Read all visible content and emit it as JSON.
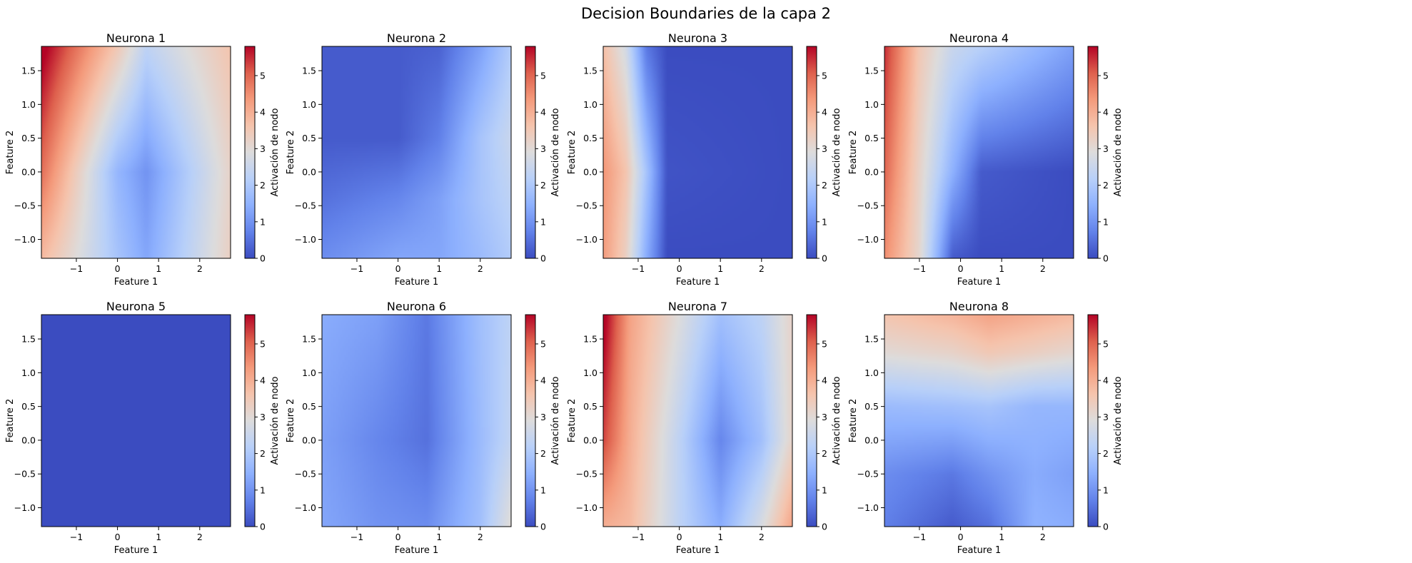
{
  "chart_data": {
    "type": "heatmap",
    "title": "Decision Boundaries de la capa 2",
    "colormap": "coolwarm",
    "colorbar": {
      "label": "Activación de nodo",
      "range": [
        0,
        5.8
      ],
      "ticks": [
        "0",
        "1",
        "2",
        "3",
        "4",
        "5"
      ]
    },
    "xlabel": "Feature 1",
    "ylabel": "Feature 2",
    "xlim": [
      -1.85,
      2.75
    ],
    "ylim": [
      -1.28,
      1.86
    ],
    "xticks": [
      "−1",
      "0",
      "1",
      "2"
    ],
    "yticks": [
      "−1.0",
      "−0.5",
      "0.0",
      "0.5",
      "1.0",
      "1.5"
    ],
    "panels": [
      {
        "title": "Neurona 1",
        "x": [
          -1.85,
          0,
          0.7,
          2.75
        ],
        "y": [
          -1.28,
          0,
          1.86
        ],
        "z": [
          [
            3.8,
            1.9,
            1.3,
            3.3
          ],
          [
            4.9,
            1.6,
            1.0,
            3.2
          ],
          [
            6.0,
            3.5,
            2.3,
            3.6
          ]
        ]
      },
      {
        "title": "Neurona 2",
        "x": [
          -1.85,
          0,
          1.0,
          2.0,
          2.75
        ],
        "y": [
          -1.28,
          -0.4,
          0.5,
          1.86
        ],
        "z": [
          [
            0.9,
            1.3,
            1.3,
            1.7,
            2.1
          ],
          [
            0.5,
            0.8,
            1.2,
            1.9,
            2.3
          ],
          [
            0.2,
            0.2,
            0.7,
            1.9,
            2.5
          ],
          [
            0.2,
            0.2,
            0.3,
            1.2,
            2.1
          ]
        ]
      },
      {
        "title": "Neurona 3",
        "x": [
          -1.85,
          -1.3,
          -0.8,
          -0.3,
          2.75
        ],
        "y": [
          -1.28,
          0,
          1.86
        ],
        "z": [
          [
            4.3,
            3.3,
            1.4,
            0,
            0
          ],
          [
            4.4,
            3.6,
            1.9,
            0.1,
            0
          ],
          [
            3.7,
            2.7,
            0.6,
            0,
            0
          ]
        ]
      },
      {
        "title": "Neurona 4",
        "x": [
          -1.85,
          -1.0,
          -0.2,
          0.5,
          2.75
        ],
        "y": [
          -1.28,
          0,
          1.86
        ],
        "z": [
          [
            4.5,
            3.1,
            0.2,
            0,
            0
          ],
          [
            5.0,
            3.2,
            1.5,
            0.2,
            0
          ],
          [
            5.5,
            3.5,
            2.5,
            2.2,
            1.2
          ]
        ]
      },
      {
        "title": "Neurona 5",
        "x": [
          -1.85,
          2.75
        ],
        "y": [
          -1.28,
          1.86
        ],
        "z": [
          [
            0,
            0
          ],
          [
            0,
            0
          ]
        ]
      },
      {
        "title": "Neurona 6",
        "x": [
          -1.85,
          -0.5,
          0.7,
          2.0,
          2.75
        ],
        "y": [
          -1.28,
          0,
          1.86
        ],
        "z": [
          [
            1.3,
            1.0,
            0.9,
            1.8,
            3.0
          ],
          [
            1.2,
            0.8,
            0.5,
            1.7,
            2.4
          ],
          [
            1.4,
            1.2,
            0.6,
            1.8,
            2.3
          ]
        ]
      },
      {
        "title": "Neurona 7",
        "x": [
          -1.85,
          -1.2,
          0,
          1.0,
          2.0,
          2.75
        ],
        "y": [
          -1.28,
          0,
          1.86
        ],
        "z": [
          [
            4.0,
            3.8,
            2.3,
            1.4,
            2.8,
            4.2
          ],
          [
            5.3,
            4.0,
            2.3,
            0.8,
            1.8,
            3.2
          ],
          [
            6.0,
            4.2,
            2.9,
            1.8,
            2.3,
            3.2
          ]
        ]
      },
      {
        "title": "Neurona 8",
        "x": [
          -1.85,
          -0.2,
          0.7,
          1.8,
          2.75
        ],
        "y": [
          -1.28,
          -0.5,
          0.5,
          1.3,
          1.86
        ],
        "z": [
          [
            0.7,
            0.2,
            0.5,
            1.5,
            1.4
          ],
          [
            0.9,
            0.6,
            1.0,
            1.4,
            1.2
          ],
          [
            1.7,
            1.8,
            1.9,
            1.6,
            1.6
          ],
          [
            3.0,
            3.2,
            3.5,
            3.3,
            3.1
          ],
          [
            3.6,
            3.9,
            4.2,
            4.0,
            3.8
          ]
        ]
      }
    ]
  }
}
